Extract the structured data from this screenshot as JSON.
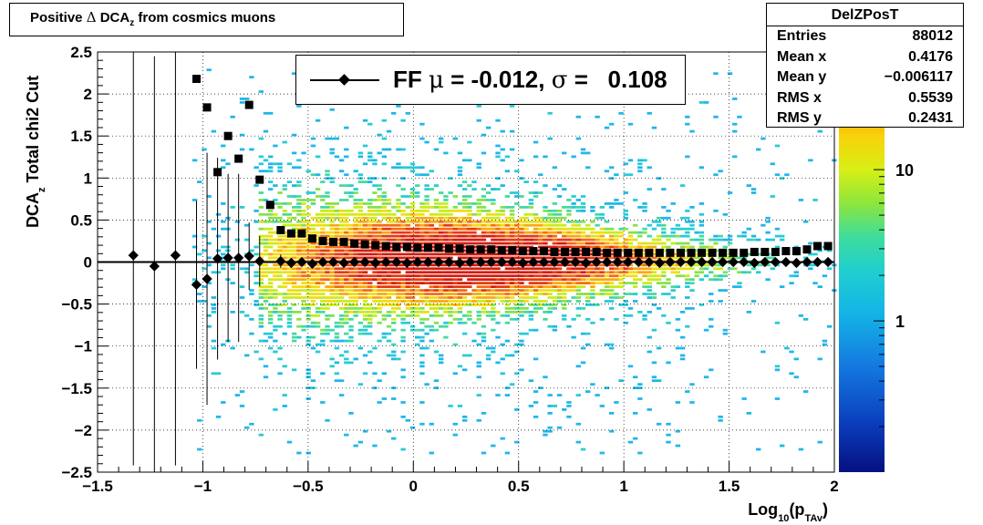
{
  "histogram_name": "DelZPosT",
  "title": {
    "pre": "Positive ",
    "delta": "Δ",
    "dca": " DCA",
    "sub": "z",
    "post": " from cosmics muons"
  },
  "stats": [
    {
      "label": "Entries",
      "value": "88012"
    },
    {
      "label": "Mean x",
      "value": "0.4176"
    },
    {
      "label": "Mean y",
      "value": "−0.006117"
    },
    {
      "label": "RMS x",
      "value": "0.5539"
    },
    {
      "label": "RMS y",
      "value": "0.2431"
    }
  ],
  "legend": {
    "prefix": "FF ",
    "mu": "μ",
    "mid": " = -0.012, ",
    "sigma": "σ",
    "suffix": " =   0.108"
  },
  "colors": {
    "frame": "#000000",
    "grid": "#000000",
    "markers": "#000000"
  },
  "chart_data": {
    "type": "heatmap",
    "xlabel": {
      "main": "Log",
      "sub1": "10",
      "mid": "(p",
      "sub2": "TAv",
      "end": ")"
    },
    "ylabel": {
      "pre": "DCA",
      "sub": "z",
      "post": "  Total chi2 Cut"
    },
    "xlim": [
      -1.5,
      2.0
    ],
    "ylim": [
      -2.5,
      2.5
    ],
    "grid": true,
    "x_ticks": [
      "−1.5",
      "−1",
      "−0.5",
      "0",
      "0.5",
      "1",
      "1.5",
      "2"
    ],
    "x_tick_values": [
      -1.5,
      -1.0,
      -0.5,
      0,
      0.5,
      1.0,
      1.5,
      2.0
    ],
    "y_ticks": [
      "−2.5",
      "−2",
      "−1.5",
      "−1",
      "−0.5",
      "0",
      "0.5",
      "1",
      "1.5",
      "2",
      "2.5"
    ],
    "y_tick_values": [
      -2.5,
      -2.0,
      -1.5,
      -1.0,
      -0.5,
      0,
      0.5,
      1.0,
      1.5,
      2.0,
      2.5
    ],
    "colorbar": {
      "scale": "log",
      "tick_labels": [
        "1",
        "10"
      ],
      "tick_values": [
        1,
        10
      ],
      "range": [
        0.1,
        60
      ]
    },
    "fit_line_y": 0.0,
    "mean_series": {
      "name": "mean (diamond)",
      "x": [
        -1.33,
        -1.23,
        -1.13,
        -1.03,
        -0.98,
        -0.93,
        -0.88,
        -0.83,
        -0.78,
        -0.73,
        -0.63,
        -0.58,
        -0.53,
        -0.48,
        -0.43,
        -0.38,
        -0.33,
        -0.28,
        -0.23,
        -0.18,
        -0.13,
        -0.08,
        -0.03,
        0.02,
        0.07,
        0.12,
        0.17,
        0.22,
        0.27,
        0.32,
        0.37,
        0.42,
        0.47,
        0.52,
        0.57,
        0.62,
        0.67,
        0.72,
        0.77,
        0.82,
        0.87,
        0.92,
        0.97,
        1.02,
        1.07,
        1.12,
        1.17,
        1.22,
        1.27,
        1.32,
        1.37,
        1.42,
        1.47,
        1.52,
        1.57,
        1.62,
        1.67,
        1.72,
        1.77,
        1.82,
        1.87,
        1.92,
        1.97
      ],
      "y": [
        0.08,
        -0.05,
        0.08,
        -0.27,
        -0.2,
        0.04,
        0.05,
        0.05,
        0.07,
        0.01,
        0.01,
        -0.01,
        0.0,
        -0.02,
        0.0,
        0.0,
        -0.01,
        0.0,
        0.0,
        -0.01,
        0.0,
        0.0,
        -0.01,
        0.0,
        0.0,
        0.0,
        0.0,
        -0.01,
        0.0,
        0.0,
        0.0,
        0.0,
        0.0,
        -0.01,
        0.0,
        0.0,
        0.0,
        0.0,
        0.0,
        -0.01,
        0.0,
        0.0,
        0.0,
        0.0,
        0.0,
        0.0,
        -0.01,
        0.0,
        0.0,
        0.0,
        0.0,
        0.0,
        0.0,
        0.0,
        0.0,
        -0.01,
        0.0,
        0.0,
        0.0,
        -0.01,
        0.0,
        0.0,
        0.0
      ],
      "err": [
        2.5,
        2.5,
        2.5,
        1.0,
        1.5,
        1.2,
        1.0,
        1.0,
        0.4,
        0.3,
        0.08,
        0.06,
        0.05,
        0.04,
        0.04,
        0.03,
        0.03,
        0.03,
        0.02,
        0.02,
        0.02,
        0.02,
        0.02,
        0.02,
        0.02,
        0.02,
        0.02,
        0.02,
        0.02,
        0.02,
        0.02,
        0.02,
        0.02,
        0.02,
        0.02,
        0.02,
        0.02,
        0.02,
        0.02,
        0.02,
        0.02,
        0.02,
        0.02,
        0.02,
        0.02,
        0.02,
        0.02,
        0.02,
        0.02,
        0.02,
        0.02,
        0.02,
        0.02,
        0.02,
        0.02,
        0.02,
        0.02,
        0.02,
        0.02,
        0.02,
        0.02,
        0.02,
        0.02
      ]
    },
    "sigma_series": {
      "name": "sigma (square)",
      "x": [
        -1.03,
        -0.98,
        -0.93,
        -0.88,
        -0.83,
        -0.78,
        -0.73,
        -0.68,
        -0.63,
        -0.58,
        -0.53,
        -0.48,
        -0.43,
        -0.38,
        -0.33,
        -0.28,
        -0.23,
        -0.18,
        -0.13,
        -0.08,
        -0.03,
        0.02,
        0.07,
        0.12,
        0.17,
        0.22,
        0.27,
        0.32,
        0.37,
        0.42,
        0.47,
        0.52,
        0.57,
        0.62,
        0.67,
        0.72,
        0.77,
        0.82,
        0.87,
        0.92,
        0.97,
        1.02,
        1.07,
        1.12,
        1.17,
        1.22,
        1.27,
        1.32,
        1.37,
        1.42,
        1.47,
        1.52,
        1.57,
        1.62,
        1.67,
        1.72,
        1.77,
        1.82,
        1.87,
        1.92,
        1.97
      ],
      "y": [
        2.18,
        1.84,
        1.07,
        1.5,
        1.23,
        1.87,
        0.98,
        0.68,
        0.38,
        0.34,
        0.34,
        0.28,
        0.25,
        0.24,
        0.24,
        0.22,
        0.21,
        0.2,
        0.19,
        0.18,
        0.18,
        0.17,
        0.17,
        0.17,
        0.16,
        0.16,
        0.15,
        0.15,
        0.15,
        0.14,
        0.14,
        0.13,
        0.13,
        0.13,
        0.12,
        0.12,
        0.12,
        0.12,
        0.12,
        0.11,
        0.11,
        0.11,
        0.11,
        0.11,
        0.11,
        0.11,
        0.11,
        0.11,
        0.11,
        0.11,
        0.11,
        0.11,
        0.11,
        0.12,
        0.12,
        0.12,
        0.13,
        0.13,
        0.15,
        0.19,
        0.19
      ]
    }
  }
}
